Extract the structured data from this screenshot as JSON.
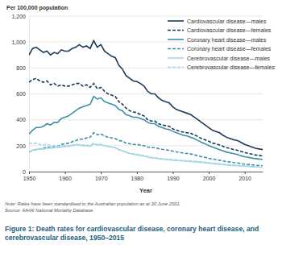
{
  "chart_data": {
    "type": "line",
    "title": "Figure 1: Death rates for cardiovascular disease, coronary heart disease, and cerebrovascular disease, 1950–2015",
    "ylabel": "Per 100,000 population",
    "xlabel": "Year",
    "annotations": [
      "Note: Rates have been standardised to the Australian population as at 30 June 2001.",
      "Source: AIHW National Mortality Database."
    ],
    "x": [
      1950,
      1951,
      1952,
      1953,
      1954,
      1955,
      1956,
      1957,
      1958,
      1959,
      1960,
      1961,
      1962,
      1963,
      1964,
      1965,
      1966,
      1967,
      1968,
      1969,
      1970,
      1971,
      1972,
      1973,
      1974,
      1975,
      1976,
      1977,
      1978,
      1979,
      1980,
      1981,
      1982,
      1983,
      1984,
      1985,
      1986,
      1987,
      1988,
      1989,
      1990,
      1991,
      1992,
      1993,
      1994,
      1995,
      1996,
      1997,
      1998,
      1999,
      2000,
      2001,
      2002,
      2003,
      2004,
      2005,
      2006,
      2007,
      2008,
      2009,
      2010,
      2011,
      2012,
      2013,
      2014,
      2015
    ],
    "xlim": [
      1950,
      2015
    ],
    "xticks": [
      1950,
      1960,
      1970,
      1980,
      1990,
      2000,
      2010
    ],
    "ylim": [
      0,
      1200
    ],
    "yticks": [
      0,
      200,
      400,
      600,
      800,
      {
        "value": 1000,
        "label": "1,000"
      },
      {
        "value": 1200,
        "label": "1,200"
      }
    ],
    "grid": true,
    "legend": "top-right",
    "series": [
      {
        "name": "Cardiovascular disease—males",
        "color": "#1c3a5a",
        "line_style": "solid",
        "values": [
          900,
          950,
          960,
          940,
          920,
          930,
          900,
          920,
          910,
          940,
          930,
          930,
          950,
          960,
          980,
          960,
          970,
          950,
          1010,
          960,
          980,
          930,
          910,
          890,
          880,
          820,
          790,
          740,
          720,
          700,
          695,
          680,
          660,
          620,
          600,
          600,
          570,
          550,
          540,
          530,
          500,
          480,
          470,
          460,
          450,
          440,
          420,
          400,
          380,
          360,
          340,
          320,
          310,
          300,
          280,
          265,
          255,
          245,
          240,
          225,
          210,
          200,
          190,
          180,
          175,
          170
        ]
      },
      {
        "name": "Cardiovascular disease—females",
        "color": "#1c3a5a",
        "line_style": "dashed",
        "values": [
          690,
          710,
          720,
          700,
          690,
          700,
          670,
          680,
          660,
          670,
          660,
          660,
          670,
          680,
          680,
          660,
          670,
          650,
          680,
          640,
          650,
          620,
          600,
          590,
          580,
          540,
          520,
          490,
          470,
          460,
          455,
          440,
          430,
          400,
          390,
          390,
          370,
          360,
          355,
          350,
          330,
          320,
          310,
          305,
          300,
          295,
          285,
          270,
          255,
          245,
          235,
          220,
          215,
          205,
          195,
          185,
          178,
          170,
          165,
          155,
          148,
          140,
          135,
          128,
          125,
          120
        ]
      },
      {
        "name": "Coronary heart disease—males",
        "color": "#3d8fa3",
        "line_style": "solid",
        "values": [
          290,
          320,
          340,
          340,
          350,
          370,
          360,
          380,
          380,
          410,
          420,
          430,
          450,
          470,
          490,
          500,
          510,
          520,
          580,
          560,
          570,
          540,
          530,
          520,
          510,
          480,
          470,
          440,
          430,
          420,
          420,
          410,
          400,
          380,
          370,
          370,
          350,
          340,
          330,
          325,
          310,
          300,
          290,
          280,
          275,
          265,
          255,
          240,
          225,
          215,
          200,
          190,
          180,
          170,
          160,
          150,
          145,
          138,
          132,
          122,
          115,
          110,
          105,
          100,
          97,
          95
        ]
      },
      {
        "name": "Coronary heart disease—females",
        "color": "#3d8fa3",
        "line_style": "dashed",
        "values": [
          150,
          165,
          170,
          175,
          180,
          190,
          185,
          195,
          195,
          210,
          215,
          220,
          230,
          240,
          250,
          250,
          260,
          265,
          300,
          285,
          290,
          275,
          265,
          260,
          255,
          240,
          235,
          220,
          215,
          210,
          210,
          205,
          200,
          190,
          185,
          185,
          178,
          172,
          168,
          165,
          158,
          152,
          148,
          143,
          140,
          136,
          130,
          122,
          115,
          110,
          103,
          97,
          93,
          88,
          82,
          77,
          74,
          70,
          67,
          62,
          58,
          55,
          52,
          49,
          47,
          45
        ]
      },
      {
        "name": "Cerebrovascular disease—males",
        "color": "#a6d6e8",
        "line_style": "solid",
        "values": [
          150,
          165,
          170,
          175,
          175,
          180,
          180,
          185,
          185,
          190,
          195,
          195,
          200,
          205,
          205,
          200,
          200,
          195,
          215,
          205,
          210,
          200,
          195,
          190,
          185,
          170,
          160,
          150,
          140,
          135,
          130,
          125,
          120,
          112,
          106,
          104,
          100,
          96,
          94,
          92,
          88,
          86,
          84,
          82,
          80,
          78,
          76,
          74,
          72,
          68,
          65,
          62,
          60,
          57,
          54,
          51,
          49,
          47,
          46,
          44,
          42,
          40,
          38,
          36,
          35,
          34
        ]
      },
      {
        "name": "Cerebrovascular disease—females",
        "color": "#a6d6e8",
        "line_style": "dashed",
        "values": [
          220,
          215,
          220,
          210,
          205,
          210,
          200,
          200,
          195,
          200,
          200,
          200,
          205,
          210,
          210,
          205,
          205,
          200,
          220,
          205,
          210,
          200,
          195,
          190,
          185,
          170,
          160,
          150,
          142,
          138,
          134,
          128,
          124,
          116,
          110,
          108,
          104,
          100,
          98,
          96,
          92,
          90,
          88,
          86,
          84,
          82,
          80,
          78,
          75,
          72,
          69,
          66,
          63,
          60,
          57,
          54,
          51,
          49,
          47,
          45,
          43,
          41,
          39,
          37,
          36,
          35
        ]
      }
    ]
  }
}
